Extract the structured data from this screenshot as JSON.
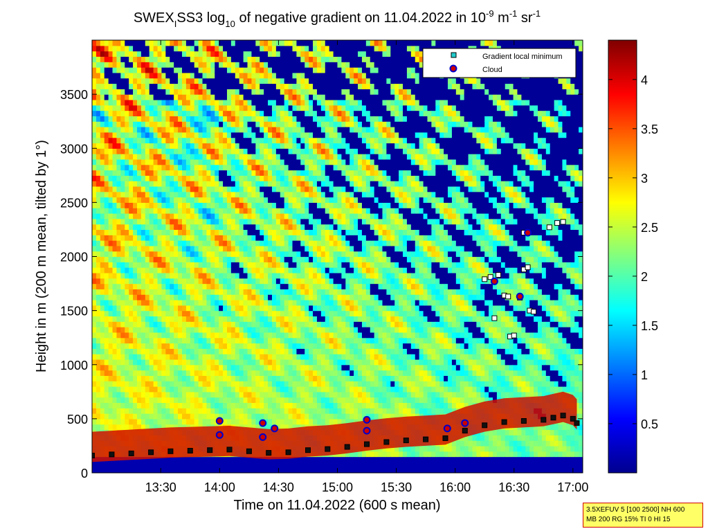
{
  "chart_data": {
    "type": "heatmap",
    "title": "SWEX_I SS3 log10 of negative gradient on 11.04.2022 in 10-9 m-1 sr-1",
    "title_parts": {
      "a": "SWEX",
      "a_sub": "I",
      "b": "SS3 log",
      "b_sub": "10",
      "c": " of negative gradient on 11.04.2022 in 10",
      "c_sup": "-9",
      "d": " m",
      "d_sup": "-1",
      "e": " sr",
      "e_sup": "-1"
    },
    "xlabel": "Time on 11.04.2022 (600 s mean)",
    "ylabel": "Height in m (200 m mean, tilted by 1°)",
    "xlim": [
      "12:55",
      "17:05"
    ],
    "ylim": [
      0,
      4000
    ],
    "x_ticks": [
      "13:30",
      "14:00",
      "14:30",
      "15:00",
      "15:30",
      "16:00",
      "16:30",
      "17:00"
    ],
    "y_ticks": [
      0,
      500,
      1000,
      1500,
      2000,
      2500,
      3000,
      3500
    ],
    "colorbar": {
      "range": [
        0,
        4.4
      ],
      "ticks": [
        0.5,
        1,
        1.5,
        2,
        2.5,
        3,
        3.5,
        4
      ],
      "colormap": "jet"
    },
    "legend": {
      "placement": "top-right",
      "entries": [
        {
          "name": "Gradient local minimum",
          "marker": "square",
          "face": "#22cccc",
          "edge": "#000000"
        },
        {
          "name": "Cloud",
          "marker": "circle",
          "face": "#cc0000",
          "edge": "#0000cc"
        }
      ]
    },
    "series": [
      {
        "name": "Gradient local minimum",
        "points": [
          [
            "12:55",
            160
          ],
          [
            "13:05",
            170
          ],
          [
            "13:15",
            180
          ],
          [
            "13:25",
            190
          ],
          [
            "13:35",
            200
          ],
          [
            "13:45",
            205
          ],
          [
            "13:55",
            210
          ],
          [
            "14:05",
            215
          ],
          [
            "14:15",
            200
          ],
          [
            "14:25",
            185
          ],
          [
            "14:35",
            190
          ],
          [
            "14:45",
            210
          ],
          [
            "14:55",
            220
          ],
          [
            "15:05",
            240
          ],
          [
            "15:15",
            265
          ],
          [
            "15:25",
            285
          ],
          [
            "15:35",
            300
          ],
          [
            "15:45",
            310
          ],
          [
            "15:55",
            320
          ],
          [
            "16:05",
            390
          ],
          [
            "16:15",
            440
          ],
          [
            "16:25",
            470
          ],
          [
            "16:35",
            480
          ],
          [
            "16:45",
            490
          ],
          [
            "16:50",
            510
          ],
          [
            "16:55",
            530
          ],
          [
            "17:00",
            500
          ],
          [
            "17:02",
            460
          ],
          [
            "16:15",
            1790
          ],
          [
            "16:18",
            1810
          ],
          [
            "16:20",
            1770
          ],
          [
            "16:22",
            1830
          ],
          [
            "16:25",
            1640
          ],
          [
            "16:27",
            1630
          ],
          [
            "16:20",
            1430
          ],
          [
            "16:28",
            1260
          ],
          [
            "16:30",
            1270
          ],
          [
            "16:35",
            1880
          ],
          [
            "16:37",
            1900
          ],
          [
            "16:38",
            1500
          ],
          [
            "16:40",
            1490
          ],
          [
            "16:35",
            2220
          ],
          [
            "16:48",
            2270
          ],
          [
            "16:52",
            2310
          ],
          [
            "16:55",
            2320
          ],
          [
            "16:33",
            1620
          ]
        ]
      },
      {
        "name": "Cloud",
        "points": [
          [
            "14:00",
            480
          ],
          [
            "14:00",
            350
          ],
          [
            "14:22",
            460
          ],
          [
            "14:22",
            330
          ],
          [
            "14:28",
            410
          ],
          [
            "15:15",
            490
          ],
          [
            "15:15",
            390
          ],
          [
            "15:56",
            410
          ],
          [
            "16:05",
            460
          ],
          [
            "16:20",
            1770
          ],
          [
            "16:33",
            1630
          ],
          [
            "16:37",
            2220
          ]
        ]
      }
    ],
    "annotations": [
      "3.5XEFUV 5 [100 2500] NH 600",
      "MB 200 RG 15% TI 0 HI 15"
    ]
  }
}
